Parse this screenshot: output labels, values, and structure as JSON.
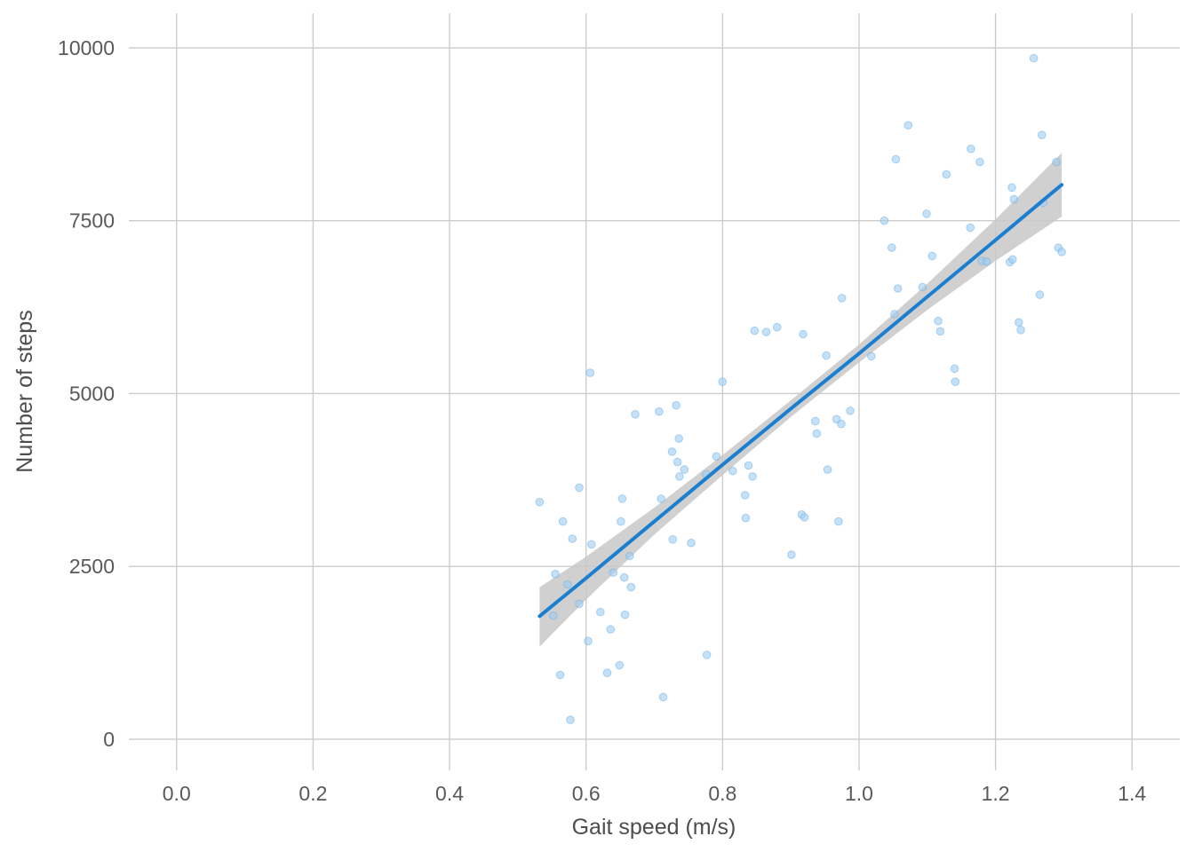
{
  "chart_data": {
    "type": "scatter",
    "xlabel": "Gait speed (m/s)",
    "ylabel": "Number of steps",
    "xlim": [
      -0.07,
      1.47
    ],
    "ylim": [
      -450,
      10500
    ],
    "x_ticks": [
      "0.0",
      "0.2",
      "0.4",
      "0.6",
      "0.8",
      "1.0",
      "1.2",
      "1.4"
    ],
    "x_tick_values": [
      0,
      0.2,
      0.4,
      0.6,
      0.8,
      1.0,
      1.2,
      1.4
    ],
    "y_ticks": [
      "0",
      "2500",
      "5000",
      "7500",
      "10000"
    ],
    "y_tick_values": [
      0,
      2500,
      5000,
      7500,
      10000
    ],
    "grid": true,
    "colors": {
      "points": "#9ccdf3",
      "point_stroke": "#6aaee6",
      "fit_line": "#1a7fd0",
      "ci_band": "#c8c8c8",
      "grid": "#cccccc"
    },
    "points": [
      [
        0.532,
        3430
      ],
      [
        0.552,
        1790
      ],
      [
        0.555,
        2390
      ],
      [
        0.562,
        930
      ],
      [
        0.566,
        3150
      ],
      [
        0.573,
        2240
      ],
      [
        0.577,
        280
      ],
      [
        0.58,
        2900
      ],
      [
        0.59,
        3640
      ],
      [
        0.59,
        1960
      ],
      [
        0.603,
        1420
      ],
      [
        0.606,
        5300
      ],
      [
        0.608,
        2820
      ],
      [
        0.621,
        1840
      ],
      [
        0.631,
        960
      ],
      [
        0.636,
        1590
      ],
      [
        0.64,
        2410
      ],
      [
        0.649,
        1070
      ],
      [
        0.651,
        3150
      ],
      [
        0.653,
        3480
      ],
      [
        0.656,
        2340
      ],
      [
        0.657,
        1800
      ],
      [
        0.664,
        2650
      ],
      [
        0.666,
        2200
      ],
      [
        0.672,
        4700
      ],
      [
        0.707,
        4740
      ],
      [
        0.71,
        3480
      ],
      [
        0.713,
        610
      ],
      [
        0.726,
        4160
      ],
      [
        0.727,
        2890
      ],
      [
        0.732,
        4830
      ],
      [
        0.734,
        4010
      ],
      [
        0.736,
        4350
      ],
      [
        0.737,
        3800
      ],
      [
        0.744,
        3900
      ],
      [
        0.754,
        2840
      ],
      [
        0.776,
        3830
      ],
      [
        0.777,
        1220
      ],
      [
        0.791,
        4090
      ],
      [
        0.8,
        5170
      ],
      [
        0.815,
        3880
      ],
      [
        0.833,
        3530
      ],
      [
        0.834,
        3200
      ],
      [
        0.838,
        3960
      ],
      [
        0.844,
        3800
      ],
      [
        0.847,
        5910
      ],
      [
        0.864,
        5890
      ],
      [
        0.88,
        5960
      ],
      [
        0.901,
        2670
      ],
      [
        0.916,
        3250
      ],
      [
        0.918,
        5860
      ],
      [
        0.92,
        3210
      ],
      [
        0.936,
        4600
      ],
      [
        0.938,
        4420
      ],
      [
        0.952,
        5550
      ],
      [
        0.954,
        3900
      ],
      [
        0.967,
        4630
      ],
      [
        0.97,
        3150
      ],
      [
        0.974,
        4560
      ],
      [
        0.975,
        6380
      ],
      [
        0.987,
        4750
      ],
      [
        1.018,
        5540
      ],
      [
        1.037,
        7500
      ],
      [
        1.048,
        7110
      ],
      [
        1.052,
        6150
      ],
      [
        1.054,
        8390
      ],
      [
        1.057,
        6520
      ],
      [
        1.072,
        8880
      ],
      [
        1.093,
        6540
      ],
      [
        1.099,
        7600
      ],
      [
        1.107,
        6990
      ],
      [
        1.116,
        6050
      ],
      [
        1.119,
        5900
      ],
      [
        1.128,
        8170
      ],
      [
        1.14,
        5360
      ],
      [
        1.141,
        5170
      ],
      [
        1.163,
        7400
      ],
      [
        1.164,
        8540
      ],
      [
        1.177,
        8350
      ],
      [
        1.18,
        6920
      ],
      [
        1.187,
        6910
      ],
      [
        1.221,
        6900
      ],
      [
        1.224,
        7980
      ],
      [
        1.225,
        6940
      ],
      [
        1.227,
        7810
      ],
      [
        1.234,
        6030
      ],
      [
        1.237,
        5920
      ],
      [
        1.256,
        9850
      ],
      [
        1.265,
        6430
      ],
      [
        1.268,
        8740
      ],
      [
        1.27,
        7760
      ],
      [
        1.289,
        8350
      ],
      [
        1.292,
        7110
      ],
      [
        1.297,
        7050
      ]
    ],
    "fit": {
      "x": [
        0.532,
        0.6,
        0.7,
        0.8,
        0.9,
        1.0,
        1.1,
        1.2,
        1.297
      ],
      "y": [
        1780,
        2330,
        3150,
        3970,
        4780,
        5580,
        6400,
        7220,
        8020
      ],
      "lower": [
        1340,
        2020,
        2960,
        3820,
        4660,
        5450,
        6210,
        6920,
        7560
      ],
      "upper": [
        2200,
        2640,
        3350,
        4110,
        4900,
        5710,
        6590,
        7520,
        8480
      ]
    }
  }
}
